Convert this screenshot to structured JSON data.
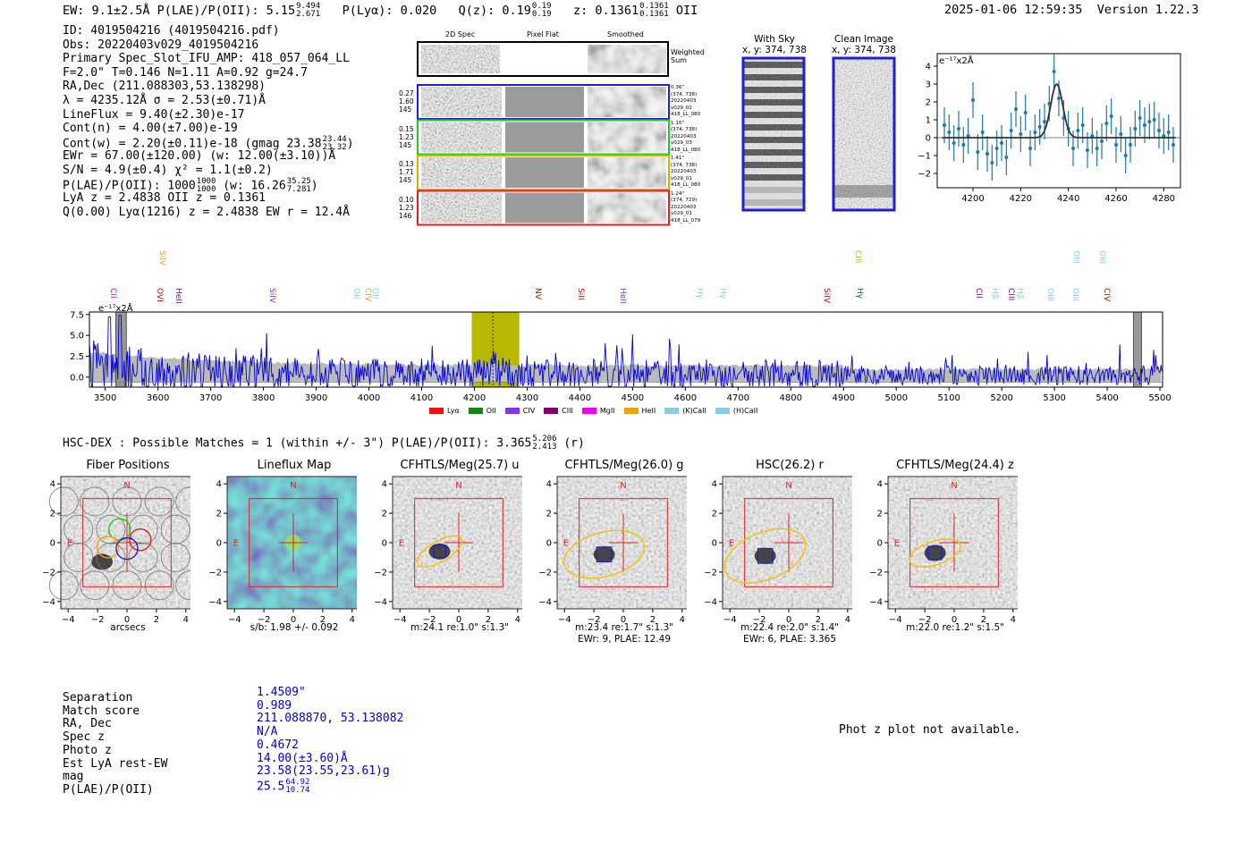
{
  "header": {
    "left_line": "EW: 9.1±2.5Å  P(LAE)/P(OII): 5.15",
    "plae_hi": "9.494",
    "plae_lo": "2.671",
    "plya": "P(Lyα): 0.020",
    "qz": "Q(z): 0.19",
    "qz_hi": "0.19",
    "qz_lo": "0.19",
    "z": "z: 0.1361",
    "z_hi": "0.1361",
    "z_lo": "0.1361",
    "z_type": "OII",
    "datetime": "2025-01-06 12:59:35",
    "version": "Version 1.22.3"
  },
  "info": {
    "id": "ID: 4019504216 (4019504216.pdf)",
    "obs": "Obs: 20220403v029_4019504216",
    "primary": "Primary Spec_Slot_IFU_AMP: 418_057_064_LL",
    "fiber": "F=2.0\"  T=0.146  N=1.11  A=0.92  g=24.7",
    "radec": "RA,Dec (211.088303,53.138298)",
    "lambda": "λ = 4235.12Å  σ = 2.53(±0.71)Å",
    "lineflux": "LineFlux = 9.40(±2.30)e-17",
    "contn": "Cont(n) = 4.00(±7.00)e-19",
    "contw": "Cont(w) = 2.20(±0.11)e-18 (gmag 23.38",
    "contw_hi": "23.44",
    "contw_lo": "23.32",
    "contw_end": ")",
    "ewr": "EWr = 67.00(±120.00) (w: 12.00(±3.10))Å",
    "sn": "S/N = 4.9(±0.4)  χ² = 1.1(±0.2)",
    "plae": "P(LAE)/P(OII): 1000",
    "plae_hi": "1000",
    "plae_lo": "1000",
    "plae_w": "(w: 16.26",
    "plae_w_hi": "35.25",
    "plae_w_lo": "7.281",
    "plae_end": ")",
    "lyaz": "LyA z = 2.4838  OII z = 0.1361",
    "q": "Q(0.00) Lyα(1216) z = 2.4838  EW r = 12.4Å"
  },
  "spec2d": {
    "headers": [
      "2D Spec",
      "Pixel Flat",
      "Smoothed"
    ],
    "weighted_label": "Weighted Sum",
    "rows": [
      {
        "left": [
          "0.27",
          "1.60",
          "145"
        ],
        "right": [
          "0.36\"",
          "(374, 738)",
          "20220403",
          "v029_02",
          "418_LL_080"
        ],
        "color": "#1f1fd0"
      },
      {
        "left": [
          "0.15",
          "1.23",
          "145"
        ],
        "right": [
          "1.10\"",
          "(374, 738)",
          "20220403",
          "v029_03",
          "418_LL_080"
        ],
        "color": "#22cc22"
      },
      {
        "left": [
          "0.13",
          "1.71",
          "145"
        ],
        "right": [
          "1.41\"",
          "(374, 738)",
          "20220403",
          "v029_01",
          "418_LL_080"
        ],
        "color": "#f5a000"
      },
      {
        "left": [
          "0.10",
          "1.23",
          "146"
        ],
        "right": [
          "1.24\"",
          "(374, 729)",
          "20220403",
          "v029_01",
          "418_LL_079"
        ],
        "color": "#dd2222"
      }
    ]
  },
  "sky": {
    "with_sky": "With Sky",
    "with_sky_xy": "x, y: 374, 738",
    "clean": "Clean Image",
    "clean_xy": "x, y: 374, 738"
  },
  "line_fit": {
    "ylabel": "e⁻¹⁷x2Å",
    "yticks": [
      "4",
      "3",
      "2",
      "1",
      "0",
      "−1",
      "−2"
    ],
    "xticks": [
      "4200",
      "4220",
      "4240",
      "4260",
      "4280"
    ]
  },
  "full_spectrum": {
    "ylabel": "e⁻¹⁷x2Å",
    "yticks": [
      "7.5",
      "5.0",
      "2.5",
      "0.0"
    ],
    "xticks": [
      "3500",
      "3600",
      "3700",
      "3800",
      "3900",
      "4000",
      "4100",
      "4200",
      "4300",
      "4400",
      "4500",
      "4600",
      "4700",
      "4800",
      "4900",
      "5000",
      "5100",
      "5200",
      "5300",
      "5400",
      "5500"
    ],
    "lines_top": [
      {
        "label": "SiIV",
        "color": "#f5a000"
      },
      {
        "label": "CIII",
        "color": "#f5a000"
      },
      {
        "label": "OIII",
        "color": "#88ccee"
      },
      {
        "label": "OIII",
        "color": "#88ccee"
      }
    ],
    "lines_mid": [
      {
        "label": "CII",
        "color": "#ee00ee"
      },
      {
        "label": "OVI",
        "color": "#cc0000"
      },
      {
        "label": "HeII",
        "color": "#880088"
      },
      {
        "label": "SiIV",
        "color": "#8833ee"
      },
      {
        "label": "OII",
        "color": "#88ccee"
      },
      {
        "label": "CIV",
        "color": "#f5a000"
      },
      {
        "label": "OII",
        "color": "#88ccee"
      },
      {
        "label": "NV",
        "color": "#cc0000"
      },
      {
        "label": "SiII",
        "color": "#cc0000"
      },
      {
        "label": "HeII",
        "color": "#8833ee"
      },
      {
        "label": "Hγ",
        "color": "#88ccee"
      },
      {
        "label": "Hγ",
        "color": "#88ccee"
      },
      {
        "label": "SiIV",
        "color": "#cc0000"
      },
      {
        "label": "Hγ",
        "color": "#008800"
      },
      {
        "label": "CII",
        "color": "#880088"
      },
      {
        "label": "Hβ",
        "color": "#88ccee"
      },
      {
        "label": "CIII",
        "color": "#880088"
      },
      {
        "label": "Hβ",
        "color": "#88ccee"
      },
      {
        "label": "OIII",
        "color": "#88ccee"
      },
      {
        "label": "OIII",
        "color": "#88ccee"
      },
      {
        "label": "CIV",
        "color": "#cc0000"
      }
    ],
    "legend": [
      {
        "label": "Lyα",
        "color": "#ee1111"
      },
      {
        "label": "OII",
        "color": "#118811"
      },
      {
        "label": "CIV",
        "color": "#8833ee"
      },
      {
        "label": "CIII",
        "color": "#880066"
      },
      {
        "label": "MgII",
        "color": "#ee00ee"
      },
      {
        "label": "HeII",
        "color": "#f5a000"
      },
      {
        "label": "(K)CaII",
        "color": "#88ccee"
      },
      {
        "label": "(H)CaII",
        "color": "#88ccee"
      }
    ]
  },
  "hsc": {
    "title": "HSC-DEX : Possible Matches = 1 (within +/- 3\")  P(LAE)/P(OII): 3.365",
    "hi": "5.206",
    "lo": "2.413",
    "end": "(r)"
  },
  "cutouts": [
    {
      "title": "Fiber Positions",
      "below1": "arcsecs",
      "below2": ""
    },
    {
      "title": "Lineflux Map",
      "below1": "s/b: 1.98 +/- 0.092",
      "below2": ""
    },
    {
      "title": "CFHTLS/Meg(25.7) u",
      "below1": "m:24.1  re:1.0\"  s:1.3\"",
      "below2": ""
    },
    {
      "title": "CFHTLS/Meg(26.0) g",
      "below1": "m:23.4  re:1.7\"  s:1.3\"",
      "below2": "EWr: 9, PLAE: 12.49"
    },
    {
      "title": "HSC(26.2) r",
      "below1": "m:22.4  re:2.0\"  s:1.4\"",
      "below2": "EWr: 6, PLAE: 3.365"
    },
    {
      "title": "CFHTLS/Meg(24.4) z",
      "below1": "m:22.0  re:1.2\"  s:1.5\"",
      "below2": ""
    }
  ],
  "cutout_ticks": {
    "x": [
      "−4",
      "−2",
      "0",
      "2",
      "4"
    ],
    "y": [
      "4",
      "2",
      "0",
      "−2",
      "−4"
    ],
    "north": "N",
    "east": "E"
  },
  "match": {
    "labels": [
      "Separation",
      "Match score",
      "RA, Dec",
      "Spec z",
      "Photo z",
      "Est LyA rest-EW",
      "mag",
      "P(LAE)/P(OII)"
    ],
    "values": [
      "1.4509\"",
      "0.989",
      "211.088870, 53.138082",
      "N/A",
      "0.4672",
      "14.00(±3.60)Å",
      "23.58(23.55,23.61)g",
      "25.5"
    ],
    "plae_hi": "64.92",
    "plae_lo": "10.74"
  },
  "photz_note": "Phot z plot not available.",
  "chart_data": [
    {
      "type": "scatter",
      "title": "Line fit",
      "xlabel": "",
      "ylabel": "e⁻¹⁷x2Å",
      "xlim": [
        4185,
        4287
      ],
      "ylim": [
        -2.8,
        4.7
      ],
      "x": [
        4188,
        4190,
        4192,
        4194,
        4196,
        4198,
        4200,
        4202,
        4204,
        4206,
        4208,
        4210,
        4212,
        4214,
        4216,
        4218,
        4220,
        4222,
        4224,
        4226,
        4228,
        4230,
        4232,
        4234,
        4236,
        4238,
        4240,
        4242,
        4244,
        4246,
        4248,
        4250,
        4252,
        4254,
        4256,
        4258,
        4260,
        4262,
        4264,
        4266,
        4268,
        4270,
        4272,
        4274,
        4276,
        4278,
        4280,
        4282,
        4284
      ],
      "y": [
        0.7,
        0.3,
        -0.3,
        0.5,
        -0.4,
        0.1,
        2.1,
        -0.8,
        0.3,
        -0.9,
        -1.4,
        -0.6,
        -0.3,
        -1.1,
        0.4,
        1.6,
        0.2,
        1.4,
        -0.6,
        0.3,
        0.6,
        0.9,
        1.9,
        3.7,
        2.2,
        1.1,
        0.5,
        -0.6,
        0.4,
        0.7,
        -0.7,
        0.1,
        -0.6,
        -0.2,
        0.8,
        1.2,
        -0.4,
        0.2,
        -1.0,
        -0.4,
        0.5,
        1.1,
        0.7,
        0.9,
        1.0,
        0.4,
        0.1,
        0.3,
        -0.4
      ],
      "yerr": 1.0,
      "fit": {
        "center": 4235.12,
        "sigma": 2.53,
        "amplitude": 3.0,
        "baseline": 0.0
      }
    },
    {
      "type": "line",
      "title": "Full spectrum",
      "xlabel": "",
      "ylabel": "e⁻¹⁷x2Å",
      "xlim": [
        3470,
        5505
      ],
      "ylim": [
        -1.2,
        7.8
      ],
      "highlight_range": [
        4195,
        4285
      ],
      "emission_x": 4235.12,
      "masked": [
        [
          3520,
          3540
        ],
        [
          5450,
          5465
        ]
      ]
    }
  ]
}
